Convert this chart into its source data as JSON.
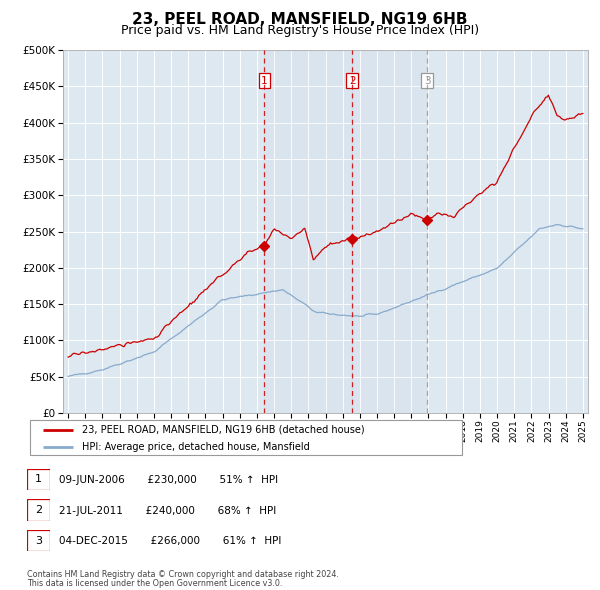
{
  "title": "23, PEEL ROAD, MANSFIELD, NG19 6HB",
  "subtitle": "Price paid vs. HM Land Registry's House Price Index (HPI)",
  "red_label": "23, PEEL ROAD, MANSFIELD, NG19 6HB (detached house)",
  "blue_label": "HPI: Average price, detached house, Mansfield",
  "footer1": "Contains HM Land Registry data © Crown copyright and database right 2024.",
  "footer2": "This data is licensed under the Open Government Licence v3.0.",
  "transactions": [
    {
      "num": 1,
      "date": "09-JUN-2006",
      "price": "£230,000",
      "pct": "51%",
      "dir": "↑",
      "year": 2006.44
    },
    {
      "num": 2,
      "date": "21-JUL-2011",
      "price": "£240,000",
      "pct": "68%",
      "dir": "↑",
      "year": 2011.55
    },
    {
      "num": 3,
      "date": "04-DEC-2015",
      "price": "£266,000",
      "pct": "61%",
      "dir": "↑",
      "year": 2015.92
    }
  ],
  "sale_prices": [
    230000,
    240000,
    266000
  ],
  "ylim": [
    0,
    500000
  ],
  "yticks": [
    0,
    50000,
    100000,
    150000,
    200000,
    250000,
    300000,
    350000,
    400000,
    450000,
    500000
  ],
  "xlim_start": 1994.7,
  "xlim_end": 2025.3,
  "red_color": "#cc0000",
  "blue_color": "#88aacc",
  "bg_color": "#dde8f0",
  "grid_color": "#ffffff",
  "vline_red": "#cc0000",
  "vline_grey": "#999999",
  "background_color": "#ffffff",
  "title_fontsize": 11,
  "subtitle_fontsize": 9
}
